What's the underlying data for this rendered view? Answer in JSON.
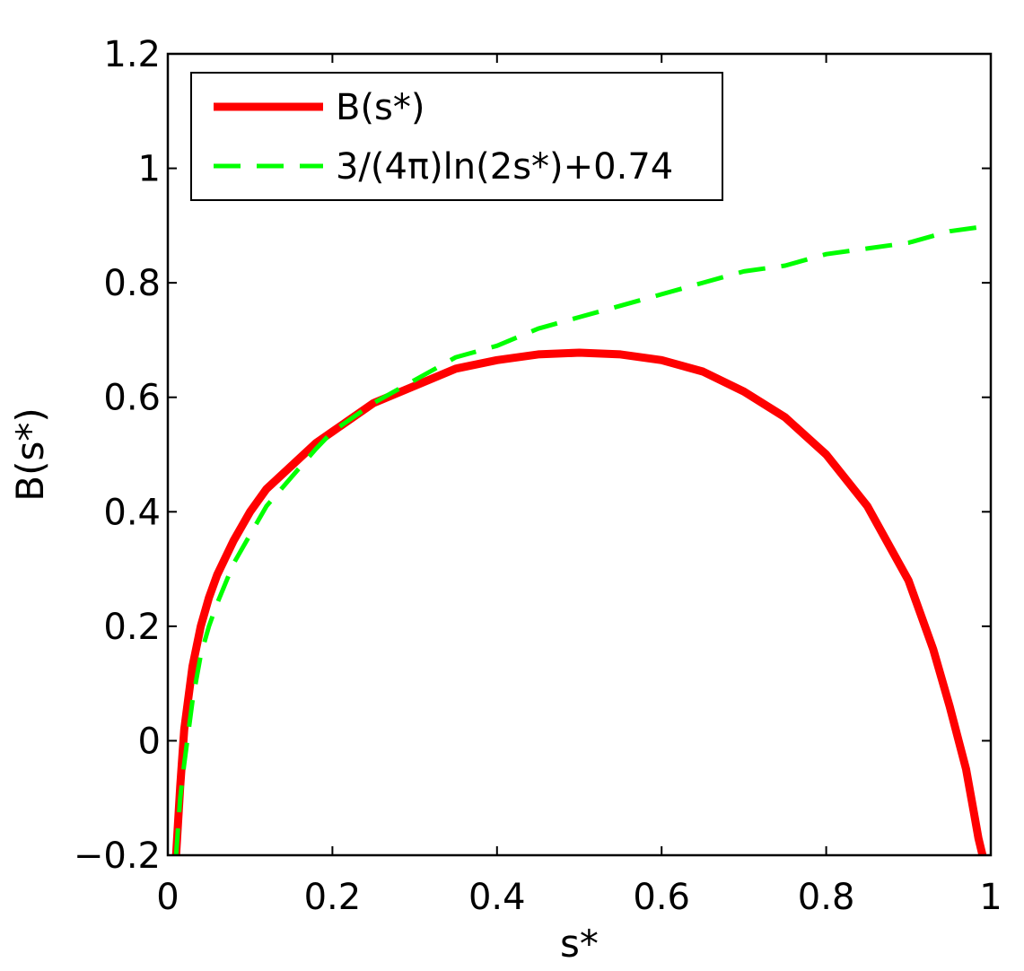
{
  "chart_data": {
    "type": "line",
    "title": "",
    "xlabel": "s*",
    "ylabel": "B(s*)",
    "xlim": [
      0,
      1
    ],
    "ylim": [
      -0.2,
      1.2
    ],
    "xticks": [
      0,
      0.2,
      0.4,
      0.6,
      0.8,
      1
    ],
    "xtick_labels": [
      "0",
      "0.2",
      "0.4",
      "0.6",
      "0.8",
      "1"
    ],
    "yticks": [
      -0.2,
      0,
      0.2,
      0.4,
      0.6,
      0.8,
      1,
      1.2
    ],
    "ytick_labels": [
      "−0.2",
      "0",
      "0.2",
      "0.4",
      "0.6",
      "0.8",
      "1",
      "1.2"
    ],
    "grid": false,
    "legend_position": "top-left",
    "series": [
      {
        "name": "B(s*)",
        "color": "#ff0000",
        "style": "solid",
        "x": [
          0.01,
          0.015,
          0.02,
          0.03,
          0.04,
          0.05,
          0.06,
          0.08,
          0.1,
          0.12,
          0.15,
          0.18,
          0.2,
          0.25,
          0.3,
          0.35,
          0.4,
          0.45,
          0.5,
          0.55,
          0.6,
          0.65,
          0.7,
          0.75,
          0.8,
          0.85,
          0.9,
          0.93,
          0.95,
          0.97,
          0.98,
          0.985,
          0.99
        ],
        "y": [
          -0.2,
          -0.08,
          0.02,
          0.13,
          0.2,
          0.25,
          0.29,
          0.35,
          0.4,
          0.44,
          0.48,
          0.52,
          0.54,
          0.59,
          0.62,
          0.65,
          0.665,
          0.675,
          0.678,
          0.675,
          0.665,
          0.645,
          0.61,
          0.565,
          0.5,
          0.41,
          0.28,
          0.16,
          0.06,
          -0.05,
          -0.13,
          -0.17,
          -0.2
        ]
      },
      {
        "name": "3/(4π)ln(2s*)+0.74",
        "color": "#00ff00",
        "style": "dashed",
        "x": [
          0.01,
          0.015,
          0.02,
          0.03,
          0.04,
          0.05,
          0.06,
          0.08,
          0.1,
          0.12,
          0.15,
          0.18,
          0.2,
          0.25,
          0.3,
          0.35,
          0.4,
          0.45,
          0.5,
          0.55,
          0.6,
          0.65,
          0.7,
          0.75,
          0.8,
          0.85,
          0.9,
          0.95,
          1.0
        ],
        "y": [
          -0.2,
          -0.1,
          -0.04,
          0.07,
          0.15,
          0.2,
          0.24,
          0.31,
          0.36,
          0.41,
          0.46,
          0.51,
          0.54,
          0.59,
          0.63,
          0.67,
          0.69,
          0.72,
          0.74,
          0.76,
          0.78,
          0.8,
          0.82,
          0.83,
          0.85,
          0.86,
          0.87,
          0.89,
          0.9
        ]
      }
    ]
  }
}
